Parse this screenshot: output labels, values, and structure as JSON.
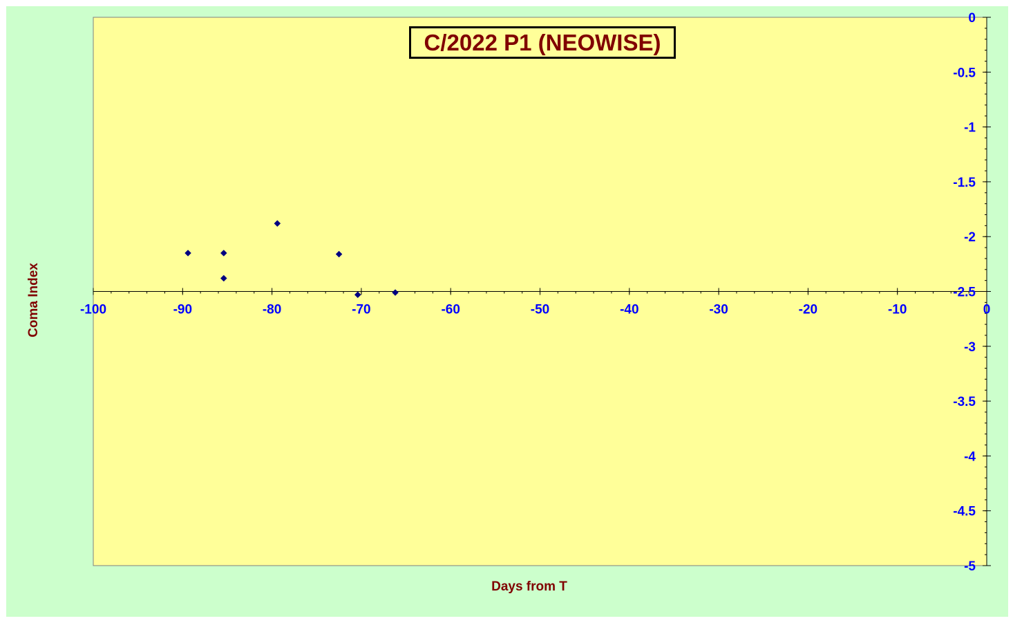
{
  "chart_data": {
    "type": "scatter",
    "title": "C/2022 P1 (NEOWISE)",
    "xlabel": "Days from T",
    "ylabel": "Coma Index",
    "xlim": [
      -100,
      0
    ],
    "ylim": [
      -5,
      0
    ],
    "x_ticks": [
      -100,
      -90,
      -80,
      -70,
      -60,
      -50,
      -40,
      -30,
      -20,
      -10,
      0
    ],
    "y_ticks": [
      0,
      -0.5,
      -1,
      -1.5,
      -2,
      -2.5,
      -3,
      -3.5,
      -4,
      -4.5,
      -5
    ],
    "x_axis_crosses_y_at": -2.5,
    "y_axis_position": "right",
    "grid": false,
    "legend": "none",
    "series": [
      {
        "points": [
          {
            "x": -89.4,
            "y": -2.15
          },
          {
            "x": -85.4,
            "y": -2.15
          },
          {
            "x": -85.4,
            "y": -2.38
          },
          {
            "x": -79.4,
            "y": -1.88
          },
          {
            "x": -72.5,
            "y": -2.16
          },
          {
            "x": -70.4,
            "y": -2.53
          },
          {
            "x": -66.2,
            "y": -2.51
          }
        ]
      }
    ],
    "colors": {
      "outer_background": "#ccffcc",
      "plot_background": "#ffff99",
      "marker": "#000080",
      "tick_labels": "#0000ff",
      "title_text": "#800000",
      "axis_title_text": "#800000",
      "axis_line": "#000000"
    }
  }
}
